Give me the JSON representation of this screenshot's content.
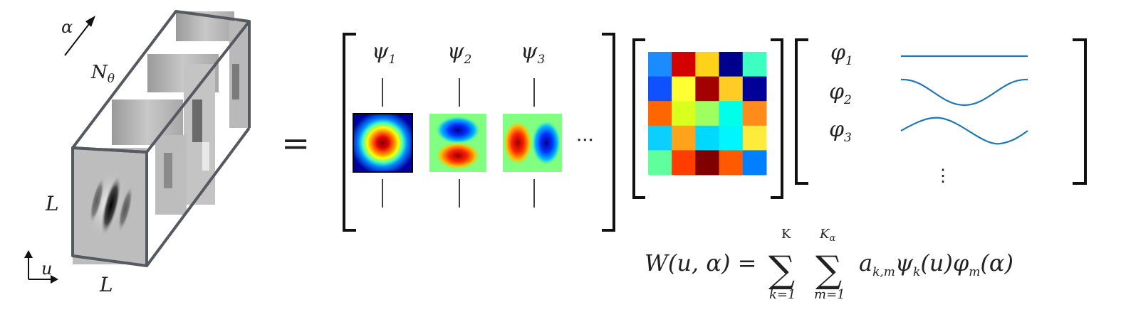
{
  "tensor": {
    "alpha": "α",
    "n_theta": "N",
    "n_theta_sub": "θ",
    "L_side": "L",
    "L_bottom": "L",
    "u": "u"
  },
  "equals": "=",
  "basis": {
    "psi": [
      {
        "sym": "ψ",
        "sub": "1",
        "colormap": "jet",
        "kind": "radial"
      },
      {
        "sym": "ψ",
        "sub": "2",
        "colormap": "jet",
        "kind": "vertical-dipole"
      },
      {
        "sym": "ψ",
        "sub": "3",
        "colormap": "jet",
        "kind": "horizontal-dipole"
      }
    ],
    "ellipsis": "···"
  },
  "coef_matrix": {
    "colormap": "jet",
    "rows": [
      [
        "#1a8cff",
        "#d40000",
        "#ffd21a",
        "#00008f",
        "#3dffc2"
      ],
      [
        "#0f50ff",
        "#ffff33",
        "#a30000",
        "#ffcc26",
        "#000099"
      ],
      [
        "#ff6600",
        "#d9ff1f",
        "#9eff60",
        "#00ffe9",
        "#ff8c1a"
      ],
      [
        "#0acfff",
        "#ffa31a",
        "#00d9ff",
        "#00f5ff",
        "#ffeb3b"
      ],
      [
        "#60ff9e",
        "#ff3d00",
        "#800000",
        "#ff5a00",
        "#0080ff"
      ]
    ]
  },
  "phi": {
    "items": [
      {
        "sym": "φ",
        "sub": "1",
        "curve": "constant"
      },
      {
        "sym": "φ",
        "sub": "2",
        "curve": "cosine-dip"
      },
      {
        "sym": "φ",
        "sub": "3",
        "curve": "sine"
      }
    ],
    "ellipsis": "⋮",
    "line_color": "#1f77b4"
  },
  "formula": {
    "lhs": "W(u, α) =",
    "sum1_top": "K",
    "sum1_bottom": "k=1",
    "sum2_top": "K",
    "sum2_top_sub": "α",
    "sum2_bottom": "m=1",
    "sigma": "∑",
    "term_a": "a",
    "term_a_sub": "k,m",
    "term_psi": "ψ",
    "term_psi_sub": "k",
    "term_psi_arg": "(u)",
    "term_phi": "φ",
    "term_phi_sub": "m",
    "term_phi_arg": "(α)"
  }
}
